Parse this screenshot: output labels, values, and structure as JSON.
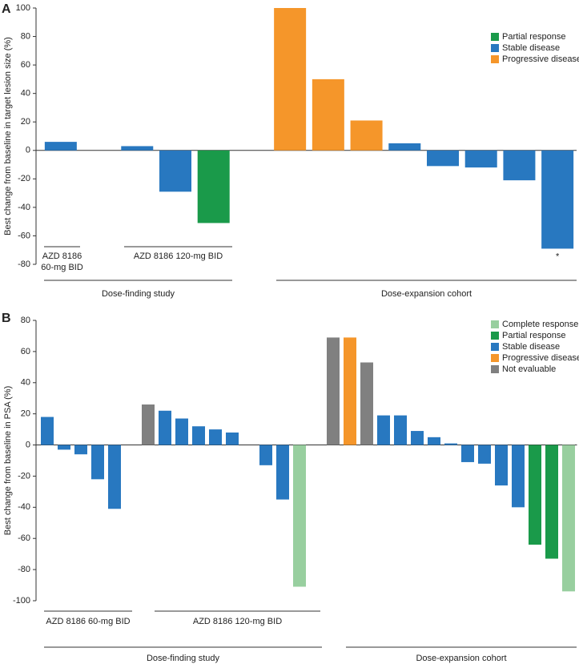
{
  "chart_data": [
    {
      "type": "bar",
      "panel_label": "A",
      "ylabel": "Best change from baseline in target lesion size (%)",
      "categories": [
        null,
        null,
        null,
        null,
        null,
        null,
        null,
        null,
        null,
        null,
        null,
        null,
        null,
        null
      ],
      "series": [
        {
          "name": "Partial response",
          "color": "#1a9a4a",
          "values": [
            null,
            null,
            null,
            null,
            -51,
            null,
            null,
            null,
            null,
            null,
            null,
            null,
            null,
            null
          ]
        },
        {
          "name": "Stable disease",
          "color": "#2878c0",
          "values": [
            6,
            null,
            3,
            -29,
            null,
            null,
            null,
            null,
            null,
            5,
            -11,
            -12,
            -21,
            -69
          ]
        },
        {
          "name": "Progressive disease",
          "color": "#f5962a",
          "values": [
            null,
            null,
            null,
            null,
            null,
            null,
            100,
            50,
            21,
            null,
            null,
            null,
            null,
            null
          ]
        }
      ],
      "ylim": [
        -80,
        100
      ],
      "yticks": [
        100,
        80,
        60,
        40,
        20,
        0,
        -20,
        -40,
        -60,
        -80
      ],
      "group_labels": [
        [
          "AZD 8186",
          "60-mg BID"
        ],
        [
          "AZD 8186 120-mg BID"
        ]
      ],
      "study_labels": [
        "Dose-finding study",
        "Dose-expansion cohort"
      ],
      "annotation": "*"
    },
    {
      "type": "bar",
      "panel_label": "B",
      "ylabel": "Best change from baseline in PSA (%)",
      "categories": [
        null,
        null,
        null,
        null,
        null,
        null,
        null,
        null,
        null,
        null,
        null,
        null,
        null,
        null,
        null,
        null,
        null,
        null,
        null,
        null,
        null,
        null,
        null,
        null,
        null,
        null,
        null,
        null,
        null,
        null,
        null,
        null
      ],
      "series": [
        {
          "name": "Complete response",
          "color": "#98cf9f",
          "values": [
            null,
            null,
            null,
            null,
            null,
            null,
            null,
            null,
            null,
            null,
            null,
            null,
            null,
            null,
            null,
            -91,
            null,
            null,
            null,
            null,
            null,
            null,
            null,
            null,
            null,
            null,
            null,
            null,
            null,
            null,
            null,
            -94
          ]
        },
        {
          "name": "Partial response",
          "color": "#1a9a4a",
          "values": [
            null,
            null,
            null,
            null,
            null,
            null,
            null,
            null,
            null,
            null,
            null,
            null,
            null,
            null,
            null,
            null,
            null,
            null,
            null,
            null,
            null,
            null,
            null,
            null,
            null,
            null,
            null,
            null,
            null,
            -64,
            -73,
            null
          ]
        },
        {
          "name": "Stable disease",
          "color": "#2878c0",
          "values": [
            18,
            -3,
            -6,
            -22,
            -41,
            null,
            null,
            22,
            17,
            12,
            10,
            8,
            null,
            -13,
            -35,
            null,
            null,
            null,
            null,
            null,
            19,
            19,
            9,
            5,
            1,
            -11,
            -12,
            -26,
            -40,
            null,
            null,
            null
          ]
        },
        {
          "name": "Progressive disease",
          "color": "#f5962a",
          "values": [
            null,
            null,
            null,
            null,
            null,
            null,
            null,
            null,
            null,
            null,
            null,
            null,
            null,
            null,
            null,
            null,
            null,
            null,
            69,
            null,
            null,
            null,
            null,
            null,
            null,
            null,
            null,
            null,
            null,
            null,
            null,
            null
          ]
        },
        {
          "name": "Not evaluable",
          "color": "#808080",
          "values": [
            null,
            null,
            null,
            null,
            null,
            null,
            26,
            null,
            null,
            null,
            null,
            null,
            null,
            null,
            null,
            null,
            null,
            69,
            null,
            53,
            null,
            null,
            null,
            null,
            null,
            null,
            null,
            null,
            null,
            null,
            null,
            null
          ]
        }
      ],
      "ylim": [
        -100,
        80
      ],
      "yticks": [
        80,
        60,
        40,
        20,
        0,
        -20,
        -40,
        -60,
        -80,
        -100
      ],
      "group_labels": [
        [
          "AZD 8186 60-mg BID"
        ],
        [
          "AZD 8186 120-mg BID"
        ]
      ],
      "study_labels": [
        "Dose-finding study",
        "Dose-expansion cohort"
      ]
    }
  ]
}
